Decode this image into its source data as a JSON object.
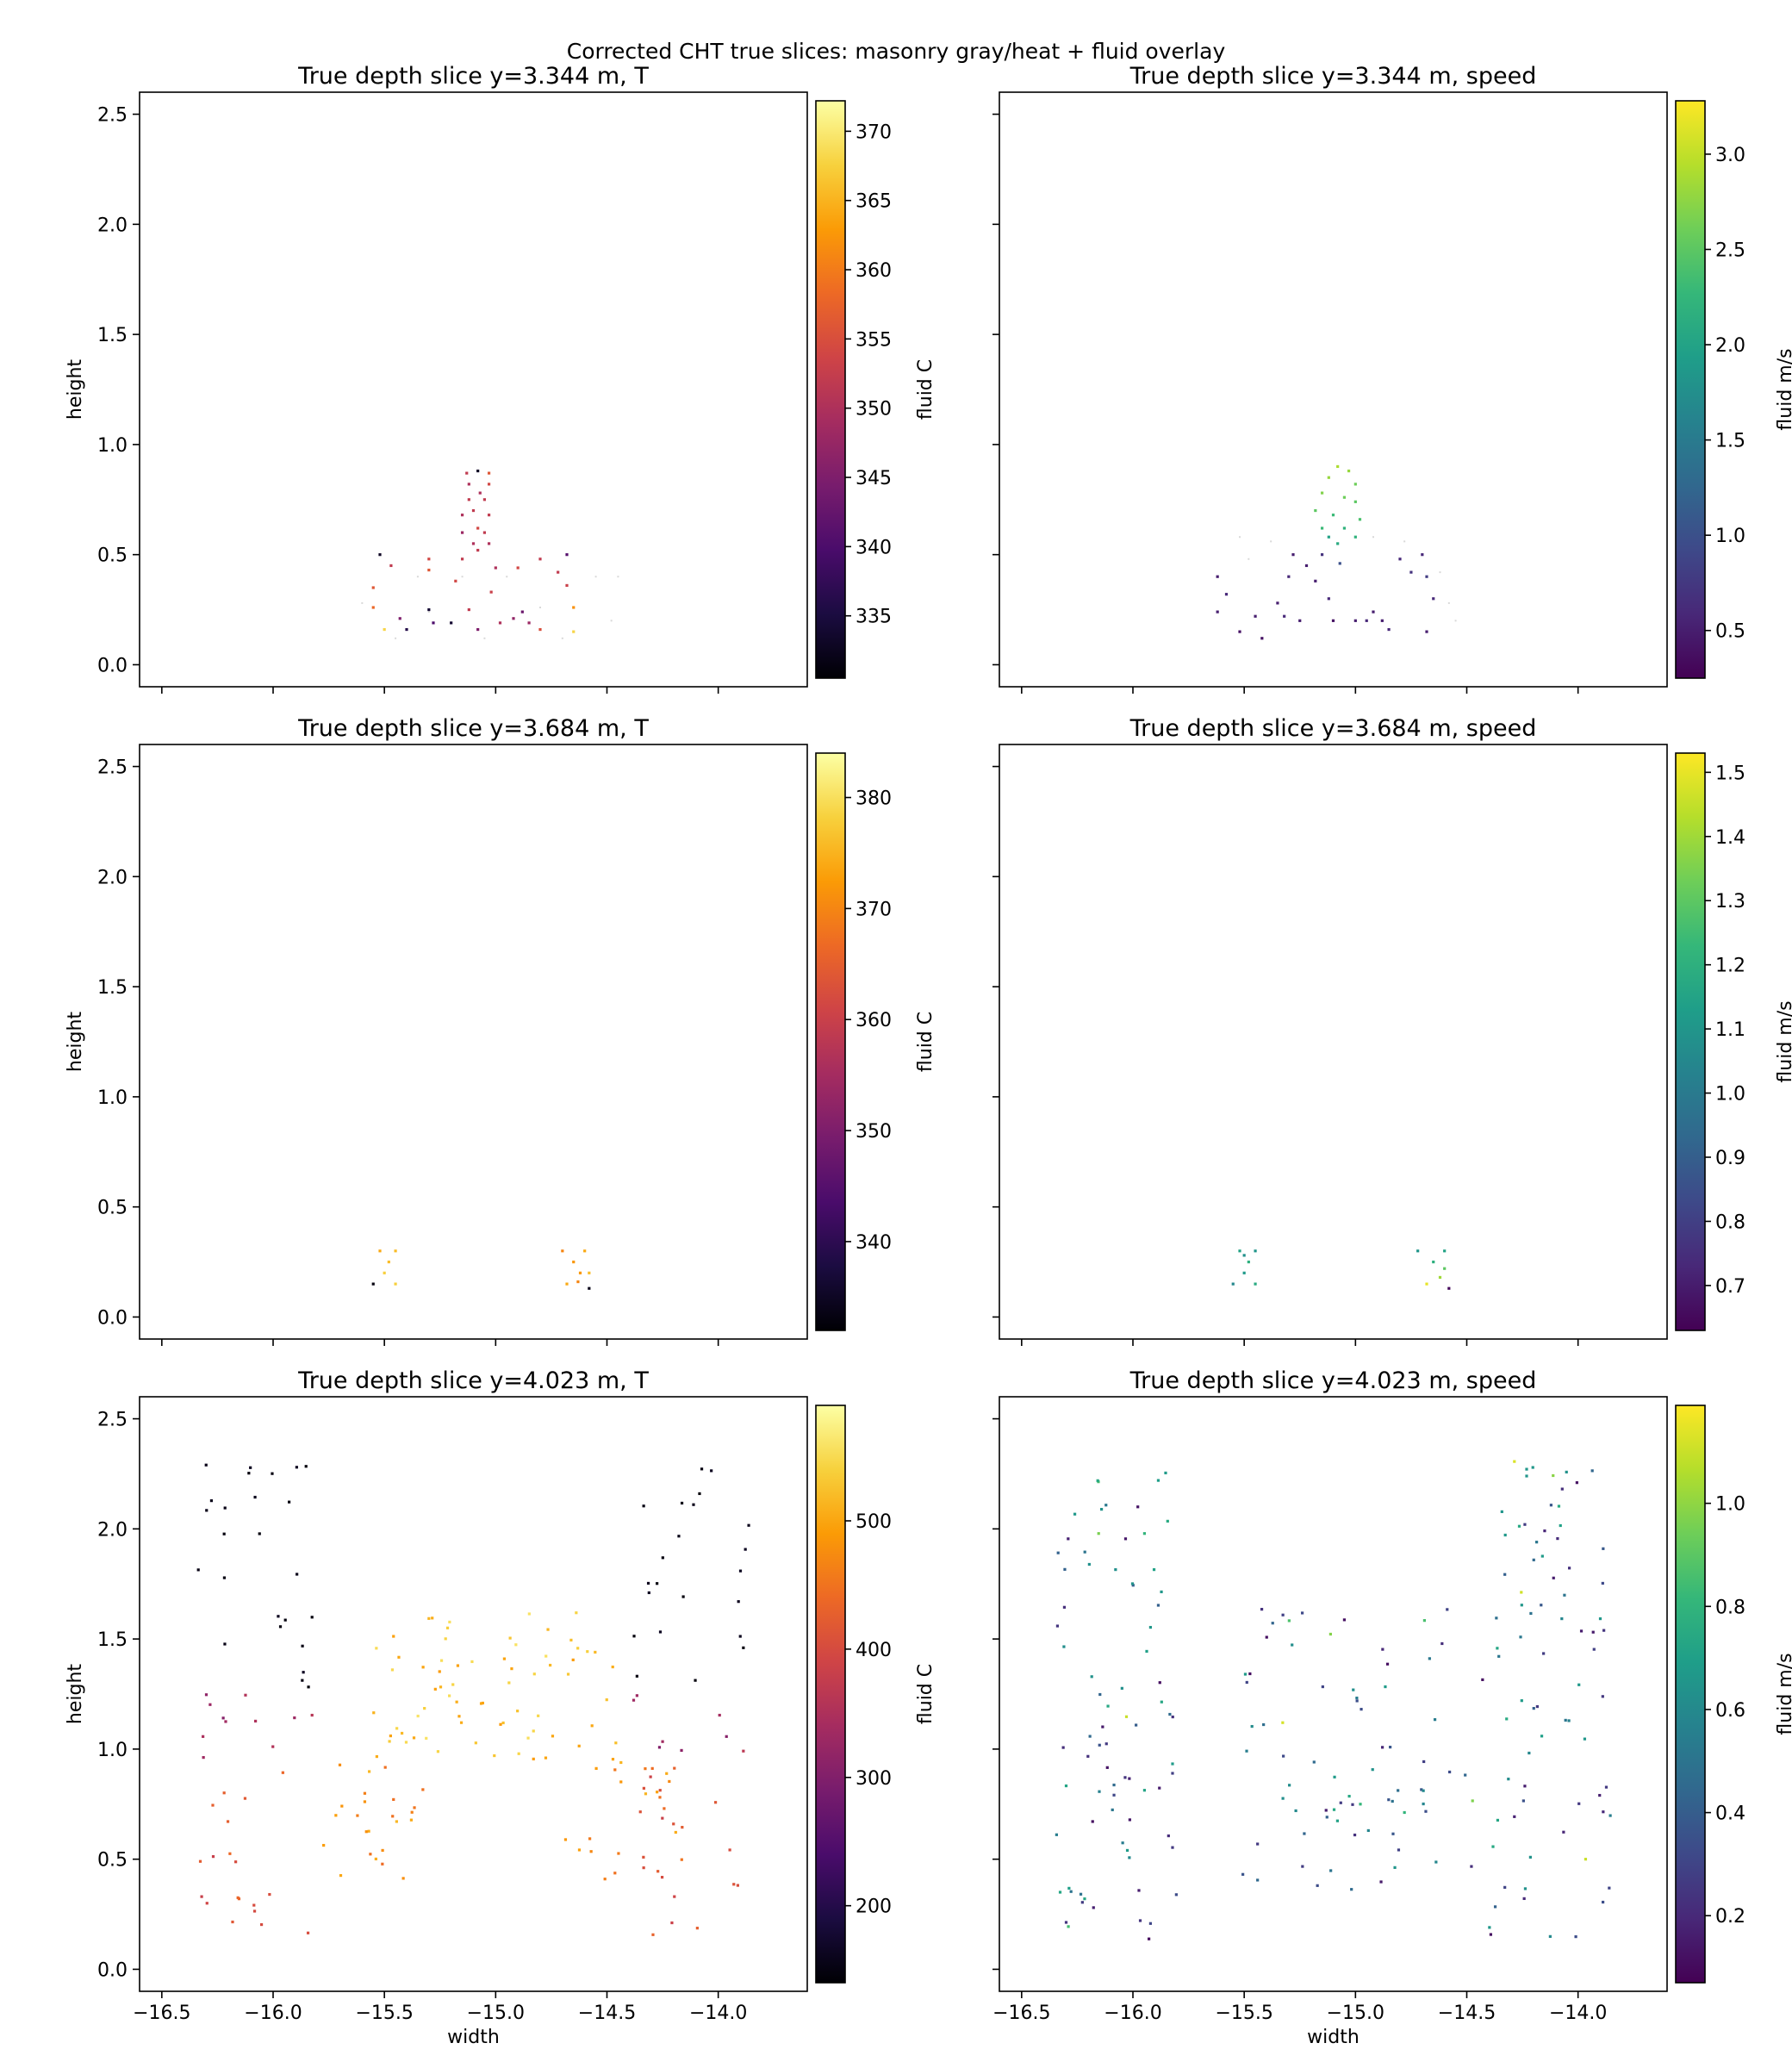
{
  "figure_title": "Corrected CHT true slices: masonry gray/heat + fluid overlay",
  "chart_data": [
    {
      "type": "scatter",
      "variable": "T",
      "colormap": "inferno",
      "title": "True depth slice y=3.344 m, T",
      "xlabel": "",
      "ylabel": "height",
      "colorbar_label": "fluid C",
      "xlim": [
        -16.6,
        -13.6
      ],
      "ylim": [
        -0.1,
        2.6
      ],
      "xticks": [
        -16.5,
        -16.0,
        -15.5,
        -15.0,
        -14.5,
        -14.0
      ],
      "xticklabels": [
        "",
        "",
        "",
        "",
        "",
        ""
      ],
      "yticks": [
        0.0,
        0.5,
        1.0,
        1.5,
        2.0,
        2.5
      ],
      "yticklabels": [
        "0.0",
        "0.5",
        "1.0",
        "1.5",
        "2.0",
        "2.5"
      ],
      "clim": [
        330.5,
        372.2
      ],
      "cticks": [
        335,
        340,
        345,
        350,
        355,
        360,
        365,
        370
      ],
      "cticklabels": [
        "335",
        "340",
        "345",
        "350",
        "355",
        "360",
        "365",
        "370"
      ],
      "gray_points": [
        [
          -15.35,
          0.4
        ],
        [
          -15.15,
          0.4
        ],
        [
          -14.95,
          0.4
        ],
        [
          -14.55,
          0.4
        ],
        [
          -14.45,
          0.4
        ],
        [
          -15.6,
          0.28
        ],
        [
          -15.3,
          0.24
        ],
        [
          -14.8,
          0.26
        ],
        [
          -14.48,
          0.2
        ],
        [
          -15.45,
          0.12
        ],
        [
          -15.05,
          0.12
        ],
        [
          -14.7,
          0.12
        ]
      ],
      "points": [
        {
          "x": -15.52,
          "y": 0.5,
          "v": 333
        },
        {
          "x": -15.47,
          "y": 0.45,
          "v": 352
        },
        {
          "x": -15.55,
          "y": 0.35,
          "v": 356
        },
        {
          "x": -15.55,
          "y": 0.26,
          "v": 358
        },
        {
          "x": -15.5,
          "y": 0.16,
          "v": 368
        },
        {
          "x": -15.43,
          "y": 0.21,
          "v": 345
        },
        {
          "x": -15.4,
          "y": 0.16,
          "v": 336
        },
        {
          "x": -15.3,
          "y": 0.25,
          "v": 334
        },
        {
          "x": -15.28,
          "y": 0.19,
          "v": 340
        },
        {
          "x": -15.2,
          "y": 0.19,
          "v": 334
        },
        {
          "x": -15.3,
          "y": 0.43,
          "v": 356
        },
        {
          "x": -15.3,
          "y": 0.48,
          "v": 354
        },
        {
          "x": -15.15,
          "y": 0.48,
          "v": 352
        },
        {
          "x": -15.18,
          "y": 0.38,
          "v": 354
        },
        {
          "x": -15.12,
          "y": 0.25,
          "v": 352
        },
        {
          "x": -15.08,
          "y": 0.16,
          "v": 345
        },
        {
          "x": -15.02,
          "y": 0.33,
          "v": 353
        },
        {
          "x": -14.98,
          "y": 0.19,
          "v": 350
        },
        {
          "x": -14.92,
          "y": 0.21,
          "v": 347
        },
        {
          "x": -14.88,
          "y": 0.24,
          "v": 343
        },
        {
          "x": -14.85,
          "y": 0.19,
          "v": 348
        },
        {
          "x": -14.8,
          "y": 0.16,
          "v": 355
        },
        {
          "x": -14.9,
          "y": 0.44,
          "v": 354
        },
        {
          "x": -14.8,
          "y": 0.48,
          "v": 352
        },
        {
          "x": -14.72,
          "y": 0.42,
          "v": 352
        },
        {
          "x": -14.68,
          "y": 0.36,
          "v": 353
        },
        {
          "x": -14.65,
          "y": 0.26,
          "v": 362
        },
        {
          "x": -14.65,
          "y": 0.15,
          "v": 368
        },
        {
          "x": -14.68,
          "y": 0.5,
          "v": 341
        },
        {
          "x": -15.0,
          "y": 0.44,
          "v": 350
        },
        {
          "x": -15.1,
          "y": 0.55,
          "v": 350
        },
        {
          "x": -15.15,
          "y": 0.6,
          "v": 348
        },
        {
          "x": -15.15,
          "y": 0.68,
          "v": 350
        },
        {
          "x": -15.12,
          "y": 0.75,
          "v": 352
        },
        {
          "x": -15.12,
          "y": 0.82,
          "v": 350
        },
        {
          "x": -15.13,
          "y": 0.87,
          "v": 352
        },
        {
          "x": -15.08,
          "y": 0.88,
          "v": 333
        },
        {
          "x": -15.03,
          "y": 0.87,
          "v": 356
        },
        {
          "x": -15.03,
          "y": 0.82,
          "v": 354
        },
        {
          "x": -15.05,
          "y": 0.75,
          "v": 352
        },
        {
          "x": -15.03,
          "y": 0.68,
          "v": 352
        },
        {
          "x": -15.05,
          "y": 0.6,
          "v": 352
        },
        {
          "x": -15.03,
          "y": 0.55,
          "v": 350
        },
        {
          "x": -15.08,
          "y": 0.52,
          "v": 352
        },
        {
          "x": -15.08,
          "y": 0.62,
          "v": 354
        },
        {
          "x": -15.1,
          "y": 0.7,
          "v": 352
        },
        {
          "x": -15.07,
          "y": 0.78,
          "v": 350
        }
      ]
    },
    {
      "type": "scatter",
      "variable": "speed",
      "colormap": "viridis",
      "title": "True depth slice y=3.344 m, speed",
      "xlabel": "",
      "ylabel": "",
      "colorbar_label": "fluid m/s",
      "xlim": [
        -16.6,
        -13.6
      ],
      "ylim": [
        -0.1,
        2.6
      ],
      "xticks": [
        -16.5,
        -16.0,
        -15.5,
        -15.0,
        -14.5,
        -14.0
      ],
      "xticklabels": [
        "",
        "",
        "",
        "",
        "",
        ""
      ],
      "yticks": [
        0.0,
        0.5,
        1.0,
        1.5,
        2.0,
        2.5
      ],
      "yticklabels": [
        "",
        "",
        "",
        "",
        "",
        ""
      ],
      "clim": [
        0.25,
        3.28
      ],
      "cticks": [
        0.5,
        1.0,
        1.5,
        2.0,
        2.5,
        3.0
      ],
      "cticklabels": [
        "0.5",
        "1.0",
        "1.5",
        "2.0",
        "2.5",
        "3.0"
      ],
      "gray_points": [
        [
          -15.52,
          0.58
        ],
        [
          -15.48,
          0.48
        ],
        [
          -15.38,
          0.56
        ],
        [
          -14.92,
          0.58
        ],
        [
          -14.78,
          0.56
        ],
        [
          -14.62,
          0.42
        ],
        [
          -14.58,
          0.28
        ],
        [
          -14.55,
          0.2
        ]
      ],
      "points": [
        {
          "x": -15.62,
          "y": 0.4,
          "v": 0.5
        },
        {
          "x": -15.58,
          "y": 0.32,
          "v": 0.6
        },
        {
          "x": -15.62,
          "y": 0.24,
          "v": 0.5
        },
        {
          "x": -15.52,
          "y": 0.15,
          "v": 0.4
        },
        {
          "x": -15.45,
          "y": 0.22,
          "v": 0.5
        },
        {
          "x": -15.42,
          "y": 0.12,
          "v": 0.4
        },
        {
          "x": -15.35,
          "y": 0.28,
          "v": 0.5
        },
        {
          "x": -15.32,
          "y": 0.22,
          "v": 0.6
        },
        {
          "x": -15.25,
          "y": 0.2,
          "v": 0.5
        },
        {
          "x": -15.3,
          "y": 0.4,
          "v": 0.6
        },
        {
          "x": -15.28,
          "y": 0.5,
          "v": 0.5
        },
        {
          "x": -15.15,
          "y": 0.5,
          "v": 0.7
        },
        {
          "x": -15.18,
          "y": 0.38,
          "v": 0.5
        },
        {
          "x": -15.12,
          "y": 0.3,
          "v": 0.6
        },
        {
          "x": -15.1,
          "y": 0.2,
          "v": 0.4
        },
        {
          "x": -15.0,
          "y": 0.2,
          "v": 0.5
        },
        {
          "x": -14.95,
          "y": 0.2,
          "v": 0.6
        },
        {
          "x": -14.92,
          "y": 0.24,
          "v": 0.5
        },
        {
          "x": -14.88,
          "y": 0.2,
          "v": 0.5
        },
        {
          "x": -14.85,
          "y": 0.16,
          "v": 0.6
        },
        {
          "x": -14.8,
          "y": 0.48,
          "v": 0.6
        },
        {
          "x": -14.75,
          "y": 0.42,
          "v": 0.7
        },
        {
          "x": -14.7,
          "y": 0.5,
          "v": 0.6
        },
        {
          "x": -14.68,
          "y": 0.4,
          "v": 0.8
        },
        {
          "x": -14.65,
          "y": 0.3,
          "v": 0.6
        },
        {
          "x": -14.68,
          "y": 0.15,
          "v": 0.5
        },
        {
          "x": -15.15,
          "y": 0.62,
          "v": 2.3
        },
        {
          "x": -15.18,
          "y": 0.7,
          "v": 2.5
        },
        {
          "x": -15.15,
          "y": 0.78,
          "v": 2.7
        },
        {
          "x": -15.12,
          "y": 0.85,
          "v": 2.8
        },
        {
          "x": -15.08,
          "y": 0.9,
          "v": 2.9
        },
        {
          "x": -15.03,
          "y": 0.88,
          "v": 2.8
        },
        {
          "x": -15.0,
          "y": 0.82,
          "v": 2.6
        },
        {
          "x": -15.0,
          "y": 0.74,
          "v": 2.5
        },
        {
          "x": -14.98,
          "y": 0.66,
          "v": 2.4
        },
        {
          "x": -15.0,
          "y": 0.58,
          "v": 2.2
        },
        {
          "x": -15.08,
          "y": 0.55,
          "v": 2.1
        },
        {
          "x": -15.1,
          "y": 0.68,
          "v": 2.3
        },
        {
          "x": -15.05,
          "y": 0.76,
          "v": 2.6
        },
        {
          "x": -15.05,
          "y": 0.62,
          "v": 2.2
        },
        {
          "x": -15.12,
          "y": 0.58,
          "v": 2.0
        },
        {
          "x": -15.07,
          "y": 0.46,
          "v": 1.0
        },
        {
          "x": -15.22,
          "y": 0.45,
          "v": 0.5
        }
      ]
    },
    {
      "type": "scatter",
      "variable": "T",
      "colormap": "inferno",
      "title": "True depth slice y=3.684 m, T",
      "xlabel": "",
      "ylabel": "height",
      "colorbar_label": "fluid C",
      "xlim": [
        -16.6,
        -13.6
      ],
      "ylim": [
        -0.1,
        2.6
      ],
      "xticks": [
        -16.5,
        -16.0,
        -15.5,
        -15.0,
        -14.5,
        -14.0
      ],
      "xticklabels": [
        "",
        "",
        "",
        "",
        "",
        ""
      ],
      "yticks": [
        0.0,
        0.5,
        1.0,
        1.5,
        2.0,
        2.5
      ],
      "yticklabels": [
        "0.0",
        "0.5",
        "1.0",
        "1.5",
        "2.0",
        "2.5"
      ],
      "clim": [
        332.0,
        384.0
      ],
      "cticks": [
        340,
        350,
        360,
        370,
        380
      ],
      "cticklabels": [
        "340",
        "350",
        "360",
        "370",
        "380"
      ],
      "gray_points": [],
      "points": [
        {
          "x": -15.55,
          "y": 0.15,
          "v": 333
        },
        {
          "x": -15.52,
          "y": 0.3,
          "v": 374
        },
        {
          "x": -15.48,
          "y": 0.25,
          "v": 376
        },
        {
          "x": -15.45,
          "y": 0.3,
          "v": 376
        },
        {
          "x": -15.5,
          "y": 0.2,
          "v": 378
        },
        {
          "x": -15.45,
          "y": 0.15,
          "v": 378
        },
        {
          "x": -14.7,
          "y": 0.3,
          "v": 370
        },
        {
          "x": -14.65,
          "y": 0.25,
          "v": 372
        },
        {
          "x": -14.6,
          "y": 0.3,
          "v": 374
        },
        {
          "x": -14.62,
          "y": 0.2,
          "v": 372
        },
        {
          "x": -14.68,
          "y": 0.15,
          "v": 374
        },
        {
          "x": -14.63,
          "y": 0.16,
          "v": 370
        },
        {
          "x": -14.58,
          "y": 0.2,
          "v": 376
        },
        {
          "x": -14.58,
          "y": 0.13,
          "v": 334
        }
      ]
    },
    {
      "type": "scatter",
      "variable": "speed",
      "colormap": "viridis",
      "title": "True depth slice y=3.684 m, speed",
      "xlabel": "",
      "ylabel": "",
      "colorbar_label": "fluid m/s",
      "xlim": [
        -16.6,
        -13.6
      ],
      "ylim": [
        -0.1,
        2.6
      ],
      "xticks": [
        -16.5,
        -16.0,
        -15.5,
        -15.0,
        -14.5,
        -14.0
      ],
      "xticklabels": [
        "",
        "",
        "",
        "",
        "",
        ""
      ],
      "yticks": [
        0.0,
        0.5,
        1.0,
        1.5,
        2.0,
        2.5
      ],
      "yticklabels": [
        "",
        "",
        "",
        "",
        "",
        ""
      ],
      "clim": [
        0.63,
        1.53
      ],
      "cticks": [
        0.7,
        0.8,
        0.9,
        1.0,
        1.1,
        1.2,
        1.3,
        1.4,
        1.5
      ],
      "cticklabels": [
        "0.7",
        "0.8",
        "0.9",
        "1.0",
        "1.1",
        "1.2",
        "1.3",
        "1.4",
        "1.5"
      ],
      "gray_points": [],
      "points": [
        {
          "x": -15.52,
          "y": 0.3,
          "v": 1.15
        },
        {
          "x": -15.48,
          "y": 0.25,
          "v": 1.2
        },
        {
          "x": -15.45,
          "y": 0.3,
          "v": 1.1
        },
        {
          "x": -15.5,
          "y": 0.2,
          "v": 1.12
        },
        {
          "x": -15.55,
          "y": 0.15,
          "v": 1.05
        },
        {
          "x": -15.45,
          "y": 0.15,
          "v": 1.18
        },
        {
          "x": -15.5,
          "y": 0.28,
          "v": 1.08
        },
        {
          "x": -14.72,
          "y": 0.3,
          "v": 1.1
        },
        {
          "x": -14.65,
          "y": 0.25,
          "v": 1.2
        },
        {
          "x": -14.6,
          "y": 0.22,
          "v": 1.3
        },
        {
          "x": -14.62,
          "y": 0.18,
          "v": 1.4
        },
        {
          "x": -14.68,
          "y": 0.15,
          "v": 1.5
        },
        {
          "x": -14.58,
          "y": 0.13,
          "v": 0.65
        },
        {
          "x": -14.6,
          "y": 0.3,
          "v": 1.15
        }
      ]
    },
    {
      "type": "scatter",
      "variable": "T",
      "colormap": "inferno",
      "title": "True depth slice y=4.023 m, T",
      "xlabel": "width",
      "ylabel": "height",
      "colorbar_label": "fluid C",
      "xlim": [
        -16.6,
        -13.6
      ],
      "ylim": [
        -0.1,
        2.6
      ],
      "xticks": [
        -16.5,
        -16.0,
        -15.5,
        -15.0,
        -14.5,
        -14.0
      ],
      "xticklabels": [
        "−16.5",
        "−16.0",
        "−15.5",
        "−15.0",
        "−14.5",
        "−14.0"
      ],
      "yticks": [
        0.0,
        0.5,
        1.0,
        1.5,
        2.0,
        2.5
      ],
      "yticklabels": [
        "0.0",
        "0.5",
        "1.0",
        "1.5",
        "2.0",
        "2.5"
      ],
      "clim": [
        140,
        590
      ],
      "cticks": [
        200,
        300,
        400,
        500
      ],
      "cticklabels": [
        "200",
        "300",
        "400",
        "500"
      ],
      "gray_points": [],
      "points": []
    },
    {
      "type": "scatter",
      "variable": "speed",
      "colormap": "viridis",
      "title": "True depth slice y=4.023 m, speed",
      "xlabel": "width",
      "ylabel": "",
      "colorbar_label": "fluid m/s",
      "xlim": [
        -16.6,
        -13.6
      ],
      "ylim": [
        -0.1,
        2.6
      ],
      "xticks": [
        -16.5,
        -16.0,
        -15.5,
        -15.0,
        -14.5,
        -14.0
      ],
      "xticklabels": [
        "−16.5",
        "−16.0",
        "−15.5",
        "−15.0",
        "−14.5",
        "−14.0"
      ],
      "yticks": [
        0.0,
        0.5,
        1.0,
        1.5,
        2.0,
        2.5
      ],
      "yticklabels": [
        "",
        "",
        "",
        "",
        "",
        ""
      ],
      "clim": [
        0.07,
        1.19
      ],
      "cticks": [
        0.2,
        0.4,
        0.6,
        0.8,
        1.0
      ],
      "cticklabels": [
        "0.2",
        "0.4",
        "0.6",
        "0.8",
        "1.0"
      ],
      "gray_points": [],
      "points": []
    }
  ]
}
